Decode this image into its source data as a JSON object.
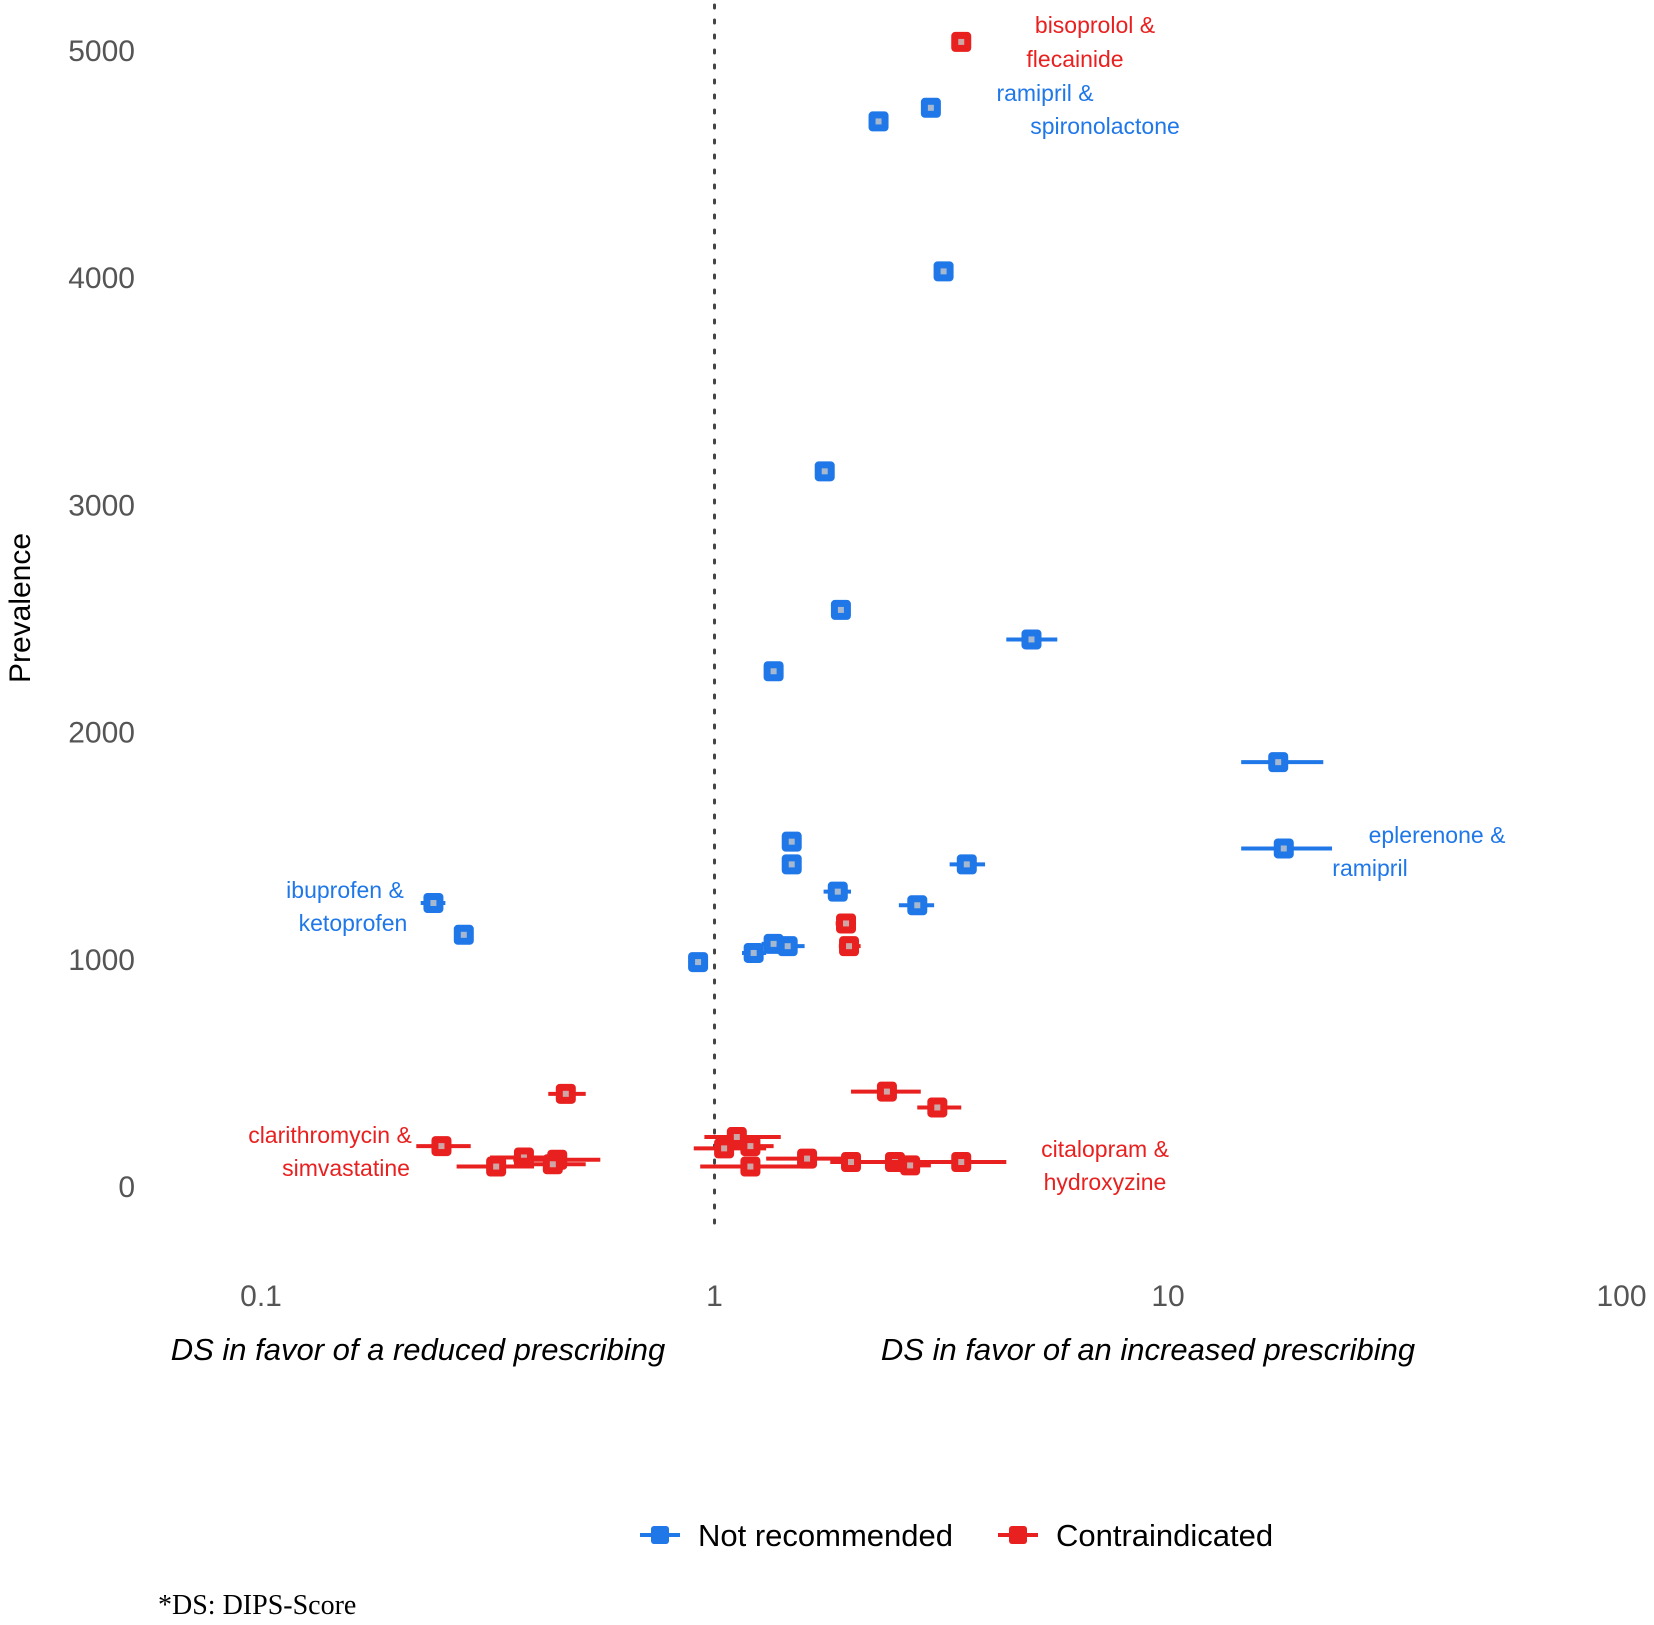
{
  "chart_data": {
    "type": "scatter",
    "x_scale": "log10",
    "xlim": [
      0.05,
      100
    ],
    "ylim": [
      -150,
      5200
    ],
    "xticks": [
      0.1,
      1,
      10,
      100
    ],
    "xtick_labels": [
      "0.1",
      "1",
      "10",
      "100"
    ],
    "yticks": [
      0,
      1000,
      2000,
      3000,
      4000,
      5000
    ],
    "ytick_labels": [
      "0",
      "1000",
      "2000",
      "3000",
      "4000",
      "5000"
    ],
    "ylabel": "Prevalence",
    "xlabel_left": "DS in favor of a reduced prescribing",
    "xlabel_right": "DS in favor of an increased prescribing",
    "reference_line_x": 1,
    "grid": false,
    "legend_position": "bottom",
    "series": [
      {
        "name": "Not recommended",
        "color": "#1f77e8",
        "points": [
          {
            "x": 3.0,
            "y": 4750,
            "lo": 2.9,
            "hi": 3.1
          },
          {
            "x": 2.3,
            "y": 4690,
            "lo": 2.22,
            "hi": 2.38
          },
          {
            "x": 3.2,
            "y": 4030,
            "lo": 3.1,
            "hi": 3.3
          },
          {
            "x": 1.75,
            "y": 3150,
            "lo": 1.68,
            "hi": 1.82
          },
          {
            "x": 1.9,
            "y": 2540,
            "lo": 1.82,
            "hi": 1.98
          },
          {
            "x": 5.0,
            "y": 2410,
            "lo": 4.4,
            "hi": 5.7
          },
          {
            "x": 1.35,
            "y": 2270,
            "lo": 1.3,
            "hi": 1.4
          },
          {
            "x": 17.5,
            "y": 1870,
            "lo": 14.5,
            "hi": 22.0
          },
          {
            "x": 1.48,
            "y": 1520,
            "lo": 1.42,
            "hi": 1.54
          },
          {
            "x": 18.0,
            "y": 1490,
            "lo": 14.5,
            "hi": 23.0
          },
          {
            "x": 1.48,
            "y": 1420,
            "lo": 1.42,
            "hi": 1.54
          },
          {
            "x": 3.6,
            "y": 1420,
            "lo": 3.3,
            "hi": 3.95
          },
          {
            "x": 1.87,
            "y": 1300,
            "lo": 1.74,
            "hi": 2.0
          },
          {
            "x": 0.24,
            "y": 1250,
            "lo": 0.225,
            "hi": 0.255
          },
          {
            "x": 2.8,
            "y": 1240,
            "lo": 2.55,
            "hi": 3.05
          },
          {
            "x": 0.28,
            "y": 1110,
            "lo": 0.27,
            "hi": 0.29
          },
          {
            "x": 1.35,
            "y": 1070,
            "lo": 1.27,
            "hi": 1.42
          },
          {
            "x": 1.45,
            "y": 1060,
            "lo": 1.37,
            "hi": 1.58
          },
          {
            "x": 1.22,
            "y": 1030,
            "lo": 1.15,
            "hi": 1.3
          },
          {
            "x": 0.92,
            "y": 990,
            "lo": 0.88,
            "hi": 0.96
          }
        ]
      },
      {
        "name": "Contraindicated",
        "color": "#e8201f",
        "points": [
          {
            "x": 3.5,
            "y": 5040,
            "lo": 3.44,
            "hi": 3.56
          },
          {
            "x": 1.95,
            "y": 1160,
            "lo": 1.85,
            "hi": 2.05
          },
          {
            "x": 1.98,
            "y": 1060,
            "lo": 1.88,
            "hi": 2.1
          },
          {
            "x": 0.47,
            "y": 410,
            "lo": 0.43,
            "hi": 0.52
          },
          {
            "x": 2.4,
            "y": 420,
            "lo": 2.0,
            "hi": 2.85
          },
          {
            "x": 3.1,
            "y": 350,
            "lo": 2.8,
            "hi": 3.5
          },
          {
            "x": 1.12,
            "y": 220,
            "lo": 0.95,
            "hi": 1.4
          },
          {
            "x": 0.25,
            "y": 180,
            "lo": 0.22,
            "hi": 0.29
          },
          {
            "x": 1.05,
            "y": 170,
            "lo": 0.9,
            "hi": 1.3
          },
          {
            "x": 1.2,
            "y": 180,
            "lo": 1.1,
            "hi": 1.35
          },
          {
            "x": 0.38,
            "y": 130,
            "lo": 0.32,
            "hi": 0.44
          },
          {
            "x": 1.6,
            "y": 125,
            "lo": 1.3,
            "hi": 1.95
          },
          {
            "x": 2.0,
            "y": 110,
            "lo": 1.8,
            "hi": 2.3
          },
          {
            "x": 0.45,
            "y": 120,
            "lo": 0.36,
            "hi": 0.56
          },
          {
            "x": 2.5,
            "y": 110,
            "lo": 2.2,
            "hi": 2.9
          },
          {
            "x": 3.5,
            "y": 110,
            "lo": 2.2,
            "hi": 4.4
          },
          {
            "x": 0.44,
            "y": 100,
            "lo": 0.37,
            "hi": 0.52
          },
          {
            "x": 0.33,
            "y": 90,
            "lo": 0.27,
            "hi": 0.4
          },
          {
            "x": 2.7,
            "y": 95,
            "lo": 2.4,
            "hi": 3.0
          },
          {
            "x": 1.2,
            "y": 90,
            "lo": 0.93,
            "hi": 1.55
          }
        ]
      }
    ],
    "annotations": [
      {
        "color": "#e8201f",
        "lines": [
          "bisoprolol &",
          "flecainide"
        ]
      },
      {
        "color": "#1f77e8",
        "lines": [
          "ramipril &",
          "spironolactone"
        ]
      },
      {
        "color": "#1f77e8",
        "lines": [
          "eplerenone &",
          "ramipril"
        ]
      },
      {
        "color": "#1f77e8",
        "lines": [
          "ibuprofen &",
          "ketoprofen"
        ]
      },
      {
        "color": "#e8201f",
        "lines": [
          "clarithromycin &",
          "simvastatine"
        ]
      },
      {
        "color": "#e8201f",
        "lines": [
          "citalopram &",
          "hydroxyzine"
        ]
      }
    ]
  },
  "footnote": "*DS: DIPS-Score"
}
